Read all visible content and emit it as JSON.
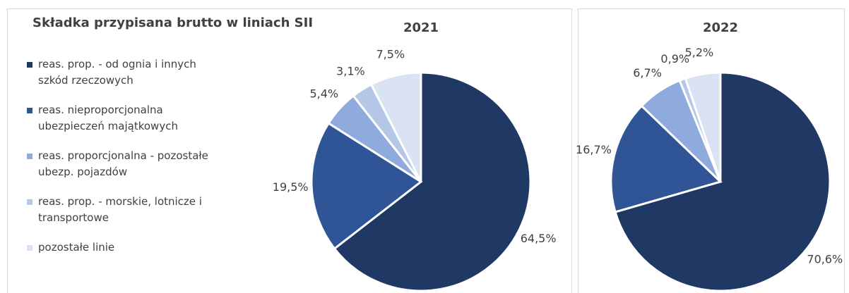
{
  "heading": "Składka przypisana brutto w liniach SII",
  "chart_data": [
    {
      "type": "pie",
      "title": "2021",
      "categories": [
        "reas. prop. - od ognia i innych szkód rzeczowych",
        "reas. nieproporcjonalna ubezpieczeń majątkowych",
        "reas. proporcjonalna - pozostałe ubezp. pojazdów",
        "reas. prop. - morskie, lotnicze i transportowe",
        "pozostałe linie"
      ],
      "values": [
        64.5,
        19.5,
        5.4,
        3.1,
        7.5
      ],
      "value_labels": [
        "64,5%",
        "19,5%",
        "5,4%",
        "3,1%",
        "7,5%"
      ],
      "colors": [
        "#1f3864",
        "#2f5597",
        "#8faadc",
        "#b4c7e7",
        "#dae3f3"
      ],
      "legend": "left"
    },
    {
      "type": "pie",
      "title": "2022",
      "values": [
        70.6,
        16.7,
        6.7,
        0.9,
        5.2
      ],
      "value_labels": [
        "70,6%",
        "16,7%",
        "6,7%",
        "0,9%",
        "5,2%"
      ],
      "colors": [
        "#1f3864",
        "#2f5597",
        "#8faadc",
        "#b4c7e7",
        "#dae3f3"
      ]
    }
  ]
}
